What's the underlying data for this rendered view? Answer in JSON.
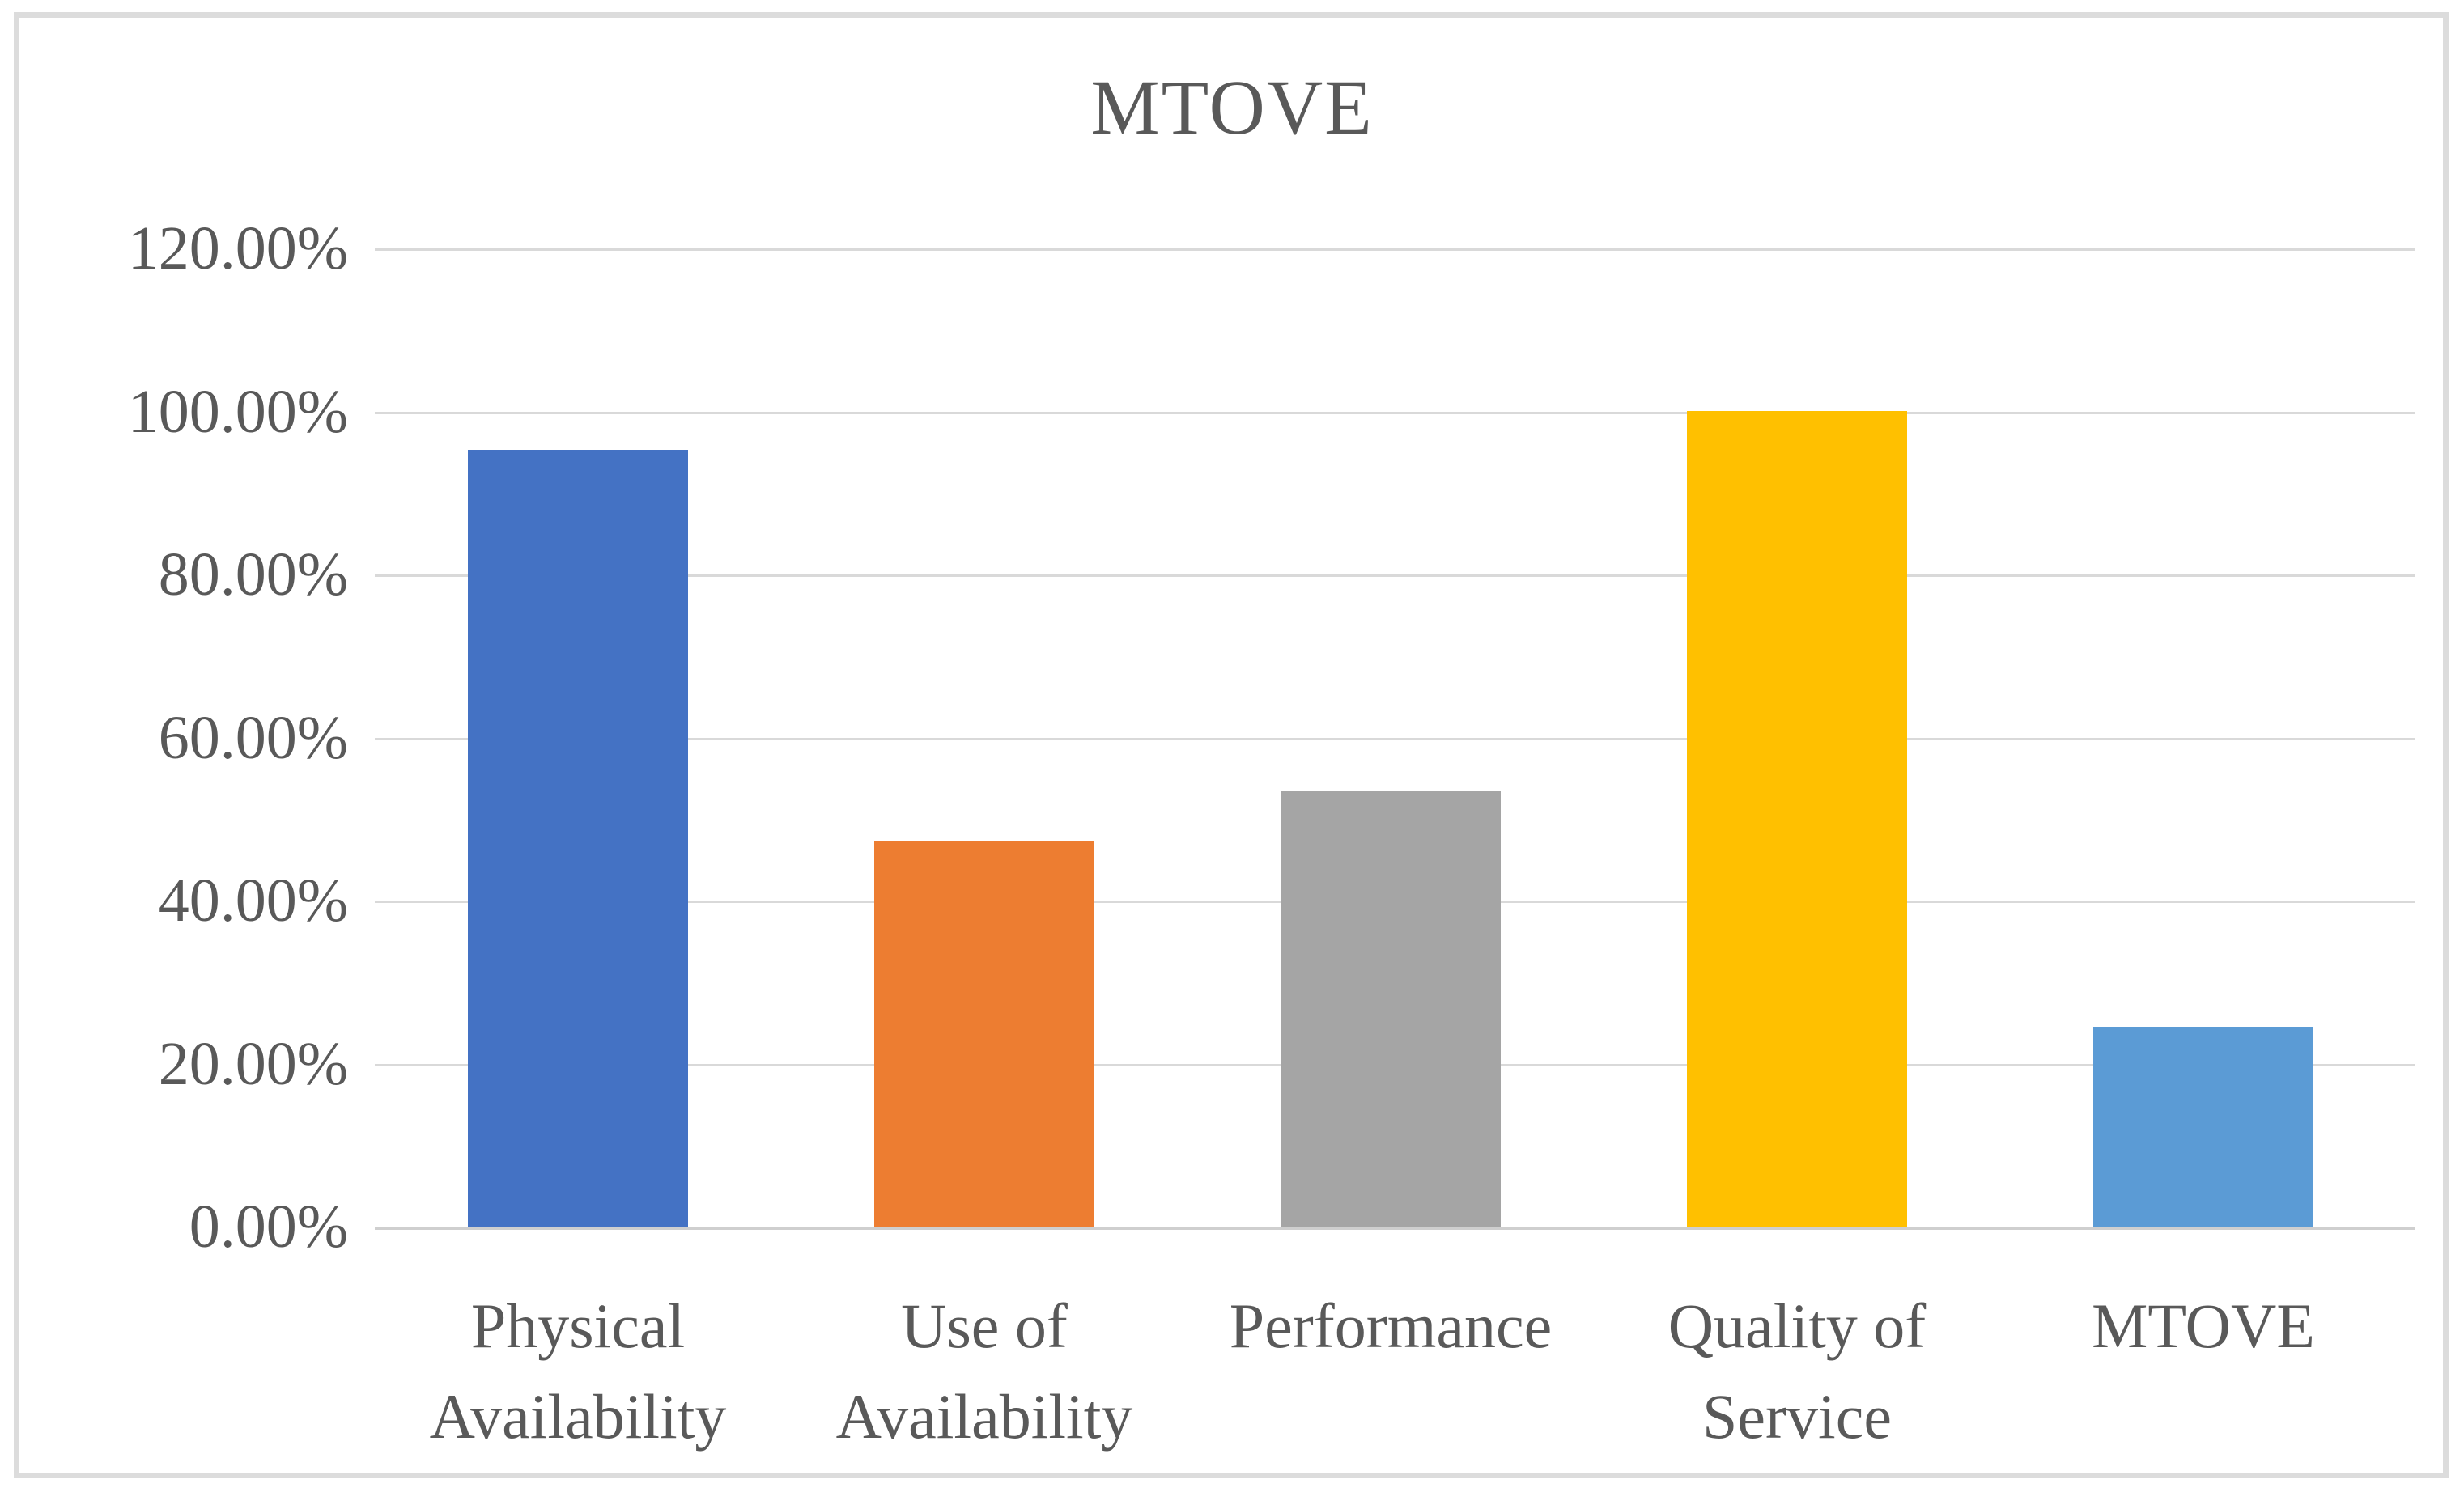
{
  "chart_data": {
    "type": "bar",
    "title": "MTOVE",
    "categories": [
      "Physical\nAvailability",
      "Use of\nAvailability",
      "Performance",
      "Quality of\nService",
      "MTOVE"
    ],
    "values": [
      95.3,
      47.2,
      53.5,
      100.0,
      24.5
    ],
    "unit": "%",
    "xlabel": "",
    "ylabel": "",
    "ylim": [
      0,
      120
    ],
    "y_tick_step": 20,
    "y_tick_labels_top_to_bottom": [
      "120.00%",
      "100.00%",
      "80.00%",
      "60.00%",
      "40.00%",
      "20.00%",
      "0.00%"
    ],
    "grid": true,
    "legend_position": "none",
    "bar_colors": [
      "#4472C4",
      "#ED7D31",
      "#A5A5A5",
      "#FFC000",
      "#5B9BD5"
    ],
    "gridline_color": "#D9D9D9",
    "axis_line_color": "#CFCFCF",
    "text_color": "#595959",
    "frame_border_color": "#DCDCDC",
    "background_color": "#FFFFFF"
  }
}
